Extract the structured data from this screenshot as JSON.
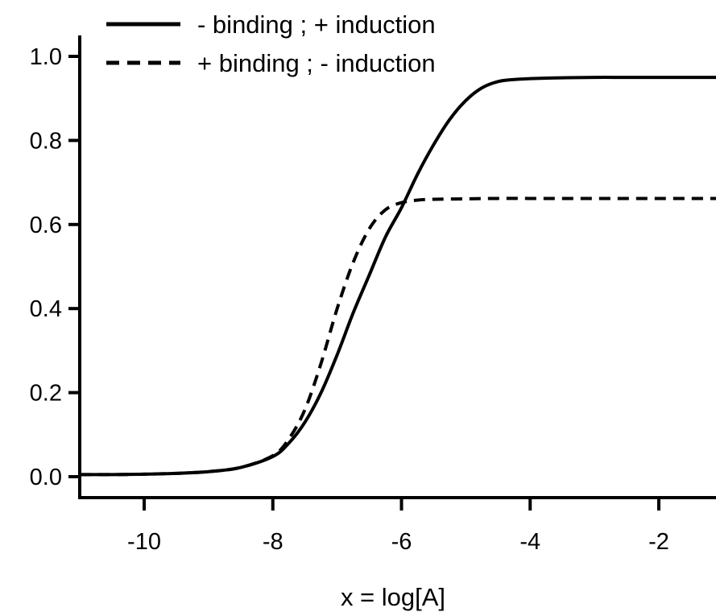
{
  "chart_data": {
    "type": "line",
    "xlabel": "x = log[A]",
    "ylabel": "",
    "xlim": [
      -11,
      -1.1
    ],
    "ylim": [
      0,
      1.0
    ],
    "x_ticks": [
      -10,
      -8,
      -6,
      -4,
      -2
    ],
    "x_tick_labels": [
      "-10",
      "-8",
      "-6",
      "-4",
      "-2"
    ],
    "y_ticks": [
      0.0,
      0.2,
      0.4,
      0.6,
      0.8,
      1.0
    ],
    "y_tick_labels": [
      "0.0",
      "0.2",
      "0.4",
      "0.6",
      "0.8",
      "1.0"
    ],
    "legend_position": "top-left",
    "grid": false,
    "series": [
      {
        "name": "- binding ; + induction",
        "style": "solid",
        "color": "#000000",
        "x": [
          -11,
          -10.5,
          -10,
          -9.5,
          -9,
          -8.5,
          -8,
          -7.75,
          -7.5,
          -7.25,
          -7,
          -6.75,
          -6.5,
          -6.25,
          -6,
          -5.75,
          -5.5,
          -5.25,
          -5,
          -4.75,
          -4.5,
          -4.25,
          -4,
          -3.5,
          -3,
          -2.5,
          -2,
          -1.5,
          -1.1
        ],
        "y": [
          0.005,
          0.005,
          0.006,
          0.008,
          0.012,
          0.022,
          0.048,
          0.08,
          0.13,
          0.2,
          0.29,
          0.39,
          0.48,
          0.57,
          0.64,
          0.72,
          0.79,
          0.85,
          0.895,
          0.925,
          0.94,
          0.945,
          0.947,
          0.949,
          0.95,
          0.95,
          0.95,
          0.95,
          0.95
        ]
      },
      {
        "name": "+ binding ; - induction",
        "style": "dashed",
        "color": "#000000",
        "x": [
          -11,
          -10.5,
          -10,
          -9.5,
          -9,
          -8.5,
          -8,
          -7.75,
          -7.5,
          -7.25,
          -7,
          -6.75,
          -6.5,
          -6.25,
          -6,
          -5.75,
          -5.5,
          -5,
          -4.5,
          -4,
          -3.5,
          -3,
          -2.5,
          -2,
          -1.5,
          -1.1
        ],
        "y": [
          0.005,
          0.005,
          0.006,
          0.008,
          0.012,
          0.022,
          0.05,
          0.09,
          0.16,
          0.27,
          0.4,
          0.51,
          0.59,
          0.635,
          0.652,
          0.658,
          0.66,
          0.661,
          0.662,
          0.662,
          0.662,
          0.662,
          0.662,
          0.662,
          0.662,
          0.662
        ]
      }
    ]
  }
}
